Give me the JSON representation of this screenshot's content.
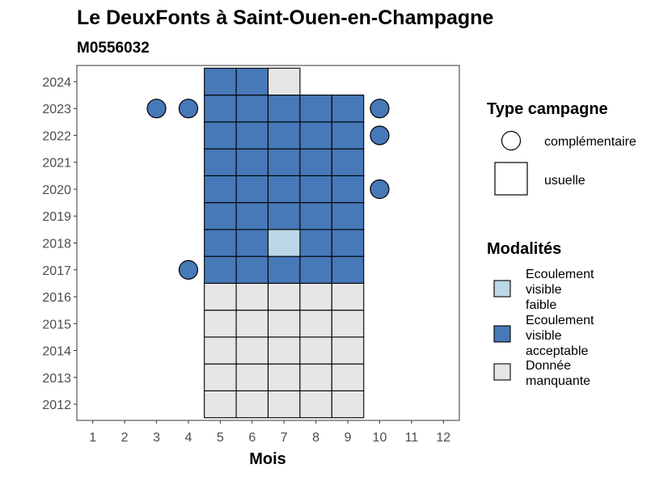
{
  "chart_data": {
    "type": "heatmap",
    "title": "Le DeuxFonts à Saint-Ouen-en-Champagne",
    "subtitle": "M0556032",
    "xlabel": "Mois",
    "ylabel": "",
    "x_ticks": [
      "1",
      "2",
      "3",
      "4",
      "5",
      "6",
      "7",
      "8",
      "9",
      "10",
      "11",
      "12"
    ],
    "y_ticks": [
      "2012",
      "2013",
      "2014",
      "2015",
      "2016",
      "2017",
      "2018",
      "2019",
      "2020",
      "2021",
      "2022",
      "2023",
      "2024"
    ],
    "xlim": [
      0.5,
      12.5
    ],
    "ylim": [
      2011.4,
      2024.6
    ],
    "colors": {
      "Ecoulement visible faible": "#bcd7e6",
      "Ecoulement visible acceptable": "#4778b8",
      "Donnée manquante": "#e6e6e6"
    },
    "tiles": [
      {
        "year": 2012,
        "months": [
          5,
          6,
          7,
          8,
          9
        ],
        "modalite": "Donnée manquante"
      },
      {
        "year": 2013,
        "months": [
          5,
          6,
          7,
          8,
          9
        ],
        "modalite": "Donnée manquante"
      },
      {
        "year": 2014,
        "months": [
          5,
          6,
          7,
          8,
          9
        ],
        "modalite": "Donnée manquante"
      },
      {
        "year": 2015,
        "months": [
          5,
          6,
          7,
          8,
          9
        ],
        "modalite": "Donnée manquante"
      },
      {
        "year": 2016,
        "months": [
          5,
          6,
          7,
          8,
          9
        ],
        "modalite": "Donnée manquante"
      },
      {
        "year": 2017,
        "months": [
          5,
          6,
          7,
          8,
          9
        ],
        "modalite": "Ecoulement visible acceptable"
      },
      {
        "year": 2018,
        "months": [
          5,
          6,
          8,
          9
        ],
        "modalite": "Ecoulement visible acceptable"
      },
      {
        "year": 2018,
        "months": [
          7
        ],
        "modalite": "Ecoulement visible faible"
      },
      {
        "year": 2019,
        "months": [
          5,
          6,
          7,
          8,
          9
        ],
        "modalite": "Ecoulement visible acceptable"
      },
      {
        "year": 2020,
        "months": [
          5,
          6,
          7,
          8,
          9
        ],
        "modalite": "Ecoulement visible acceptable"
      },
      {
        "year": 2021,
        "months": [
          5,
          6,
          7,
          8,
          9
        ],
        "modalite": "Ecoulement visible acceptable"
      },
      {
        "year": 2022,
        "months": [
          5,
          6,
          7,
          8,
          9
        ],
        "modalite": "Ecoulement visible acceptable"
      },
      {
        "year": 2023,
        "months": [
          5,
          6,
          7,
          8,
          9
        ],
        "modalite": "Ecoulement visible acceptable"
      },
      {
        "year": 2024,
        "months": [
          5,
          6
        ],
        "modalite": "Ecoulement visible acceptable"
      },
      {
        "year": 2024,
        "months": [
          7
        ],
        "modalite": "Donnée manquante"
      }
    ],
    "points": [
      {
        "year": 2017,
        "month": 4,
        "modalite": "Ecoulement visible acceptable"
      },
      {
        "year": 2020,
        "month": 10,
        "modalite": "Ecoulement visible acceptable"
      },
      {
        "year": 2022,
        "month": 10,
        "modalite": "Ecoulement visible acceptable"
      },
      {
        "year": 2023,
        "month": 3,
        "modalite": "Ecoulement visible acceptable"
      },
      {
        "year": 2023,
        "month": 4,
        "modalite": "Ecoulement visible acceptable"
      },
      {
        "year": 2023,
        "month": 10,
        "modalite": "Ecoulement visible acceptable"
      }
    ],
    "legend_shape": {
      "title": "Type campagne",
      "items": [
        "complémentaire",
        "usuelle"
      ]
    },
    "legend_color": {
      "title": "Modalités",
      "items": [
        {
          "label_lines": [
            "Ecoulement",
            "visible",
            "faible"
          ],
          "modalite": "Ecoulement visible faible"
        },
        {
          "label_lines": [
            "Ecoulement",
            "visible",
            "acceptable"
          ],
          "modalite": "Ecoulement visible acceptable"
        },
        {
          "label_lines": [
            "Donnée",
            "manquante"
          ],
          "modalite": "Donnée manquante"
        }
      ]
    },
    "legend_placement": "right",
    "grid": false
  }
}
